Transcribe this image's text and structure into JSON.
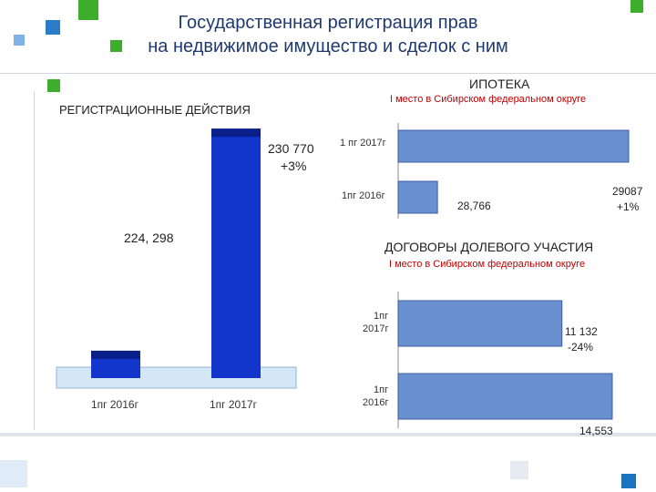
{
  "title": {
    "line1": "Государственная регистрация прав",
    "line2": "на недвижимое имущество и сделок с ним"
  },
  "colors": {
    "title": "#1f3a6e",
    "accent_green": "#3dae2b",
    "accent_blue": "#1e73be",
    "bar_blue": "#1236cc",
    "bar_blue_dark": "#0a1f8a",
    "hbar_fill": "#6b90cf",
    "hbar_stroke": "#3b5c9e",
    "red": "#c00000"
  },
  "registration": {
    "heading": "РЕГИСТРАЦИОННЫЕ ДЕЙСТВИЯ",
    "label_2017": "230 770",
    "change_2017": "+3%",
    "label_2016": "224, 298",
    "cat_2016": "1пг 2016г",
    "cat_2017": "1пг 2017г"
  },
  "mortgage": {
    "heading": "ИПОТЕКА",
    "subheading": "I место в Сибирском федеральном округе",
    "cat_2017": "1 пг 2017г",
    "cat_2016": "1пг 2016г",
    "label_2016": "28,766",
    "label_2017": "29087",
    "change_2017": "+1%"
  },
  "equity": {
    "heading": "ДОГОВОРЫ ДОЛЕВОГО УЧАСТИЯ",
    "subheading": "I место в Сибирском федеральном округе",
    "cat_2017_line1": "1пг",
    "cat_2017_line2": "2017г",
    "cat_2016_line1": "1пг",
    "cat_2016_line2": "2016г",
    "label_2017": "11 132",
    "change_2017": "-24%",
    "label_2016": "14,553"
  },
  "chart_data": [
    {
      "type": "bar",
      "title": "РЕГИСТРАЦИОННЫЕ ДЕЙСТВИЯ",
      "categories": [
        "1пг 2016г",
        "1пг 2017г"
      ],
      "values": [
        224298,
        230770
      ],
      "annotations": [
        "+3%"
      ]
    },
    {
      "type": "bar",
      "orientation": "horizontal",
      "title": "ИПОТЕКА",
      "categories": [
        "1 пг 2017г",
        "1пг 2016г"
      ],
      "values": [
        29087,
        28766
      ],
      "annotations": [
        "+1%"
      ]
    },
    {
      "type": "bar",
      "orientation": "horizontal",
      "title": "ДОГОВОРЫ ДОЛЕВОГО УЧАСТИЯ",
      "categories": [
        "1пг 2017г",
        "1пг 2016г"
      ],
      "values": [
        11132,
        14553
      ],
      "annotations": [
        "-24%"
      ]
    }
  ]
}
